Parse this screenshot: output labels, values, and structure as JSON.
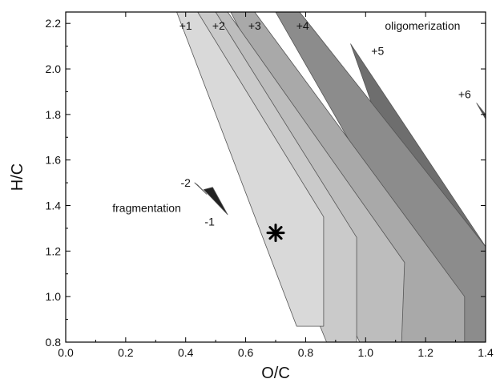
{
  "chart_data": {
    "type": "area",
    "xlabel": "O/C",
    "ylabel": "H/C",
    "xlim": [
      0.0,
      1.4
    ],
    "ylim": [
      0.8,
      2.25
    ],
    "x_ticks": [
      "0.0",
      "0.2",
      "0.4",
      "0.6",
      "0.8",
      "1.0",
      "1.2",
      "1.4"
    ],
    "y_ticks": [
      "0.8",
      "1.0",
      "1.2",
      "1.4",
      "1.6",
      "1.8",
      "2.0",
      "2.2"
    ],
    "grid": false,
    "regions": [
      {
        "name": "",
        "fill": "#4f4f4f",
        "points": [
          [
            1.37,
            1.85
          ],
          [
            1.4,
            1.8
          ],
          [
            1.4,
            1.78
          ]
        ]
      },
      {
        "name": "",
        "fill": "#6e6e6e",
        "points": [
          [
            0.95,
            2.11
          ],
          [
            1.4,
            1.22
          ],
          [
            1.4,
            0.8
          ],
          [
            1.3,
            0.8
          ]
        ]
      },
      {
        "name": "",
        "fill": "#8c8c8c",
        "points": [
          [
            0.7,
            2.25
          ],
          [
            0.78,
            2.25
          ],
          [
            1.4,
            1.22
          ],
          [
            1.4,
            0.8
          ],
          [
            1.33,
            0.8
          ]
        ]
      },
      {
        "name": "",
        "fill": "#a9a9a9",
        "points": [
          [
            0.55,
            2.25
          ],
          [
            0.63,
            2.25
          ],
          [
            1.33,
            1.0
          ],
          [
            1.33,
            0.8
          ],
          [
            1.12,
            0.8
          ]
        ]
      },
      {
        "name": "",
        "fill": "#bdbdbd",
        "points": [
          [
            0.47,
            2.25
          ],
          [
            0.54,
            2.25
          ],
          [
            1.13,
            1.15
          ],
          [
            1.12,
            0.8
          ],
          [
            0.98,
            0.8
          ]
        ]
      },
      {
        "name": "",
        "fill": "#cacaca",
        "points": [
          [
            0.42,
            2.25
          ],
          [
            0.5,
            2.25
          ],
          [
            0.97,
            1.26
          ],
          [
            0.97,
            0.8
          ],
          [
            0.87,
            0.8
          ]
        ]
      },
      {
        "name": "",
        "fill": "#d9d9d9",
        "points": [
          [
            0.37,
            2.25
          ],
          [
            0.44,
            2.25
          ],
          [
            0.86,
            1.35
          ],
          [
            0.86,
            0.87
          ],
          [
            0.77,
            0.87
          ]
        ]
      },
      {
        "name": "",
        "fill": "#111111",
        "points": [
          [
            0.43,
            1.5
          ],
          [
            0.47,
            1.45
          ],
          [
            0.44,
            1.49
          ]
        ]
      },
      {
        "name": "",
        "fill": "#222222",
        "points": [
          [
            0.46,
            1.47
          ],
          [
            0.49,
            1.48
          ],
          [
            0.54,
            1.36
          ]
        ]
      }
    ],
    "marker": {
      "symbol": "*",
      "x": 0.7,
      "y": 1.28
    },
    "annotations": [
      {
        "text": "+1",
        "x": 0.4,
        "y": 2.19
      },
      {
        "text": "+2",
        "x": 0.51,
        "y": 2.19
      },
      {
        "text": "+3",
        "x": 0.63,
        "y": 2.19
      },
      {
        "text": "+4",
        "x": 0.79,
        "y": 2.19
      },
      {
        "text": "oligomerization",
        "x": 1.19,
        "y": 2.19
      },
      {
        "text": "+5",
        "x": 1.04,
        "y": 2.08
      },
      {
        "text": "+6",
        "x": 1.33,
        "y": 1.89
      },
      {
        "text": "-2",
        "x": 0.4,
        "y": 1.5
      },
      {
        "text": "fragmentation",
        "x": 0.27,
        "y": 1.39
      },
      {
        "text": "-1",
        "x": 0.48,
        "y": 1.33
      }
    ]
  }
}
